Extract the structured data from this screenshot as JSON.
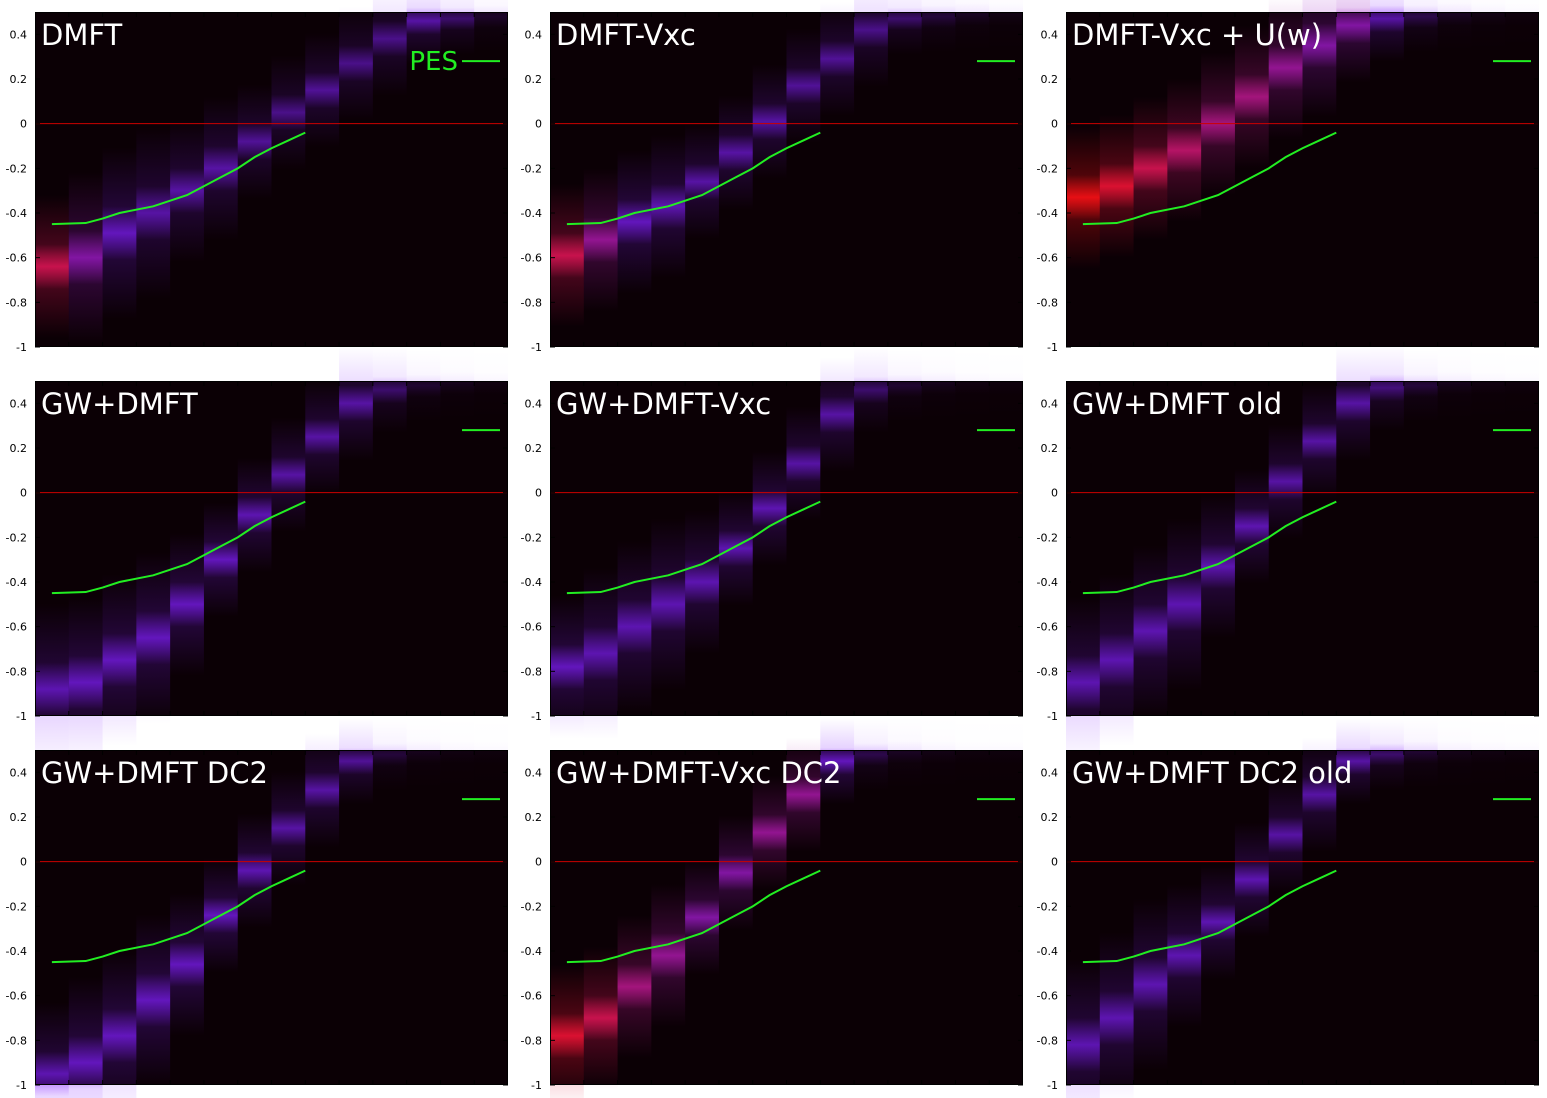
{
  "colors": {
    "background": "#ffffff",
    "plot_background": "#0b0005",
    "fermi_line": "#cc0000",
    "pes_line": "#22ee22",
    "title_text": "#ffffff"
  },
  "chart_data": [
    {
      "type": "heatmap",
      "title": "DMFT",
      "legend": {
        "label": "PES",
        "placement": "top-right"
      },
      "ylim": [
        -1,
        0.5
      ],
      "yticks": [
        -1,
        -0.8,
        -0.6,
        -0.4,
        -0.2,
        0,
        0.2,
        0.4
      ],
      "fermi_level": 0,
      "bands": [
        {
          "k": 0,
          "energy": -0.64,
          "width": 0.1,
          "intensity": 0.9
        },
        {
          "k": 1,
          "energy": -0.6,
          "width": 0.12,
          "intensity": 0.7
        },
        {
          "k": 2,
          "energy": -0.49,
          "width": 0.12,
          "intensity": 0.6
        },
        {
          "k": 3,
          "energy": -0.4,
          "width": 0.12,
          "intensity": 0.5
        },
        {
          "k": 4,
          "energy": -0.3,
          "width": 0.1,
          "intensity": 0.5
        },
        {
          "k": 5,
          "energy": -0.2,
          "width": 0.1,
          "intensity": 0.5
        },
        {
          "k": 6,
          "energy": -0.08,
          "width": 0.08,
          "intensity": 0.45
        },
        {
          "k": 7,
          "energy": 0.05,
          "width": 0.08,
          "intensity": 0.4
        },
        {
          "k": 8,
          "energy": 0.15,
          "width": 0.08,
          "intensity": 0.45
        },
        {
          "k": 9,
          "energy": 0.27,
          "width": 0.08,
          "intensity": 0.4
        },
        {
          "k": 10,
          "energy": 0.38,
          "width": 0.08,
          "intensity": 0.4
        },
        {
          "k": 11,
          "energy": 0.46,
          "width": 0.06,
          "intensity": 0.5
        },
        {
          "k": 12,
          "energy": 0.47,
          "width": 0.05,
          "intensity": 0.3
        },
        {
          "k": 13,
          "energy": 0.48,
          "width": 0.05,
          "intensity": 0.1
        }
      ]
    },
    {
      "type": "heatmap",
      "title": "DMFT-Vxc",
      "legend": {
        "label": "",
        "placement": "top-right"
      },
      "ylim": [
        -1,
        0.5
      ],
      "yticks": [
        -1,
        -0.8,
        -0.6,
        -0.4,
        -0.2,
        0,
        0.2,
        0.4
      ],
      "fermi_level": 0,
      "bands": [
        {
          "k": 0,
          "energy": -0.59,
          "width": 0.1,
          "intensity": 0.9
        },
        {
          "k": 1,
          "energy": -0.52,
          "width": 0.1,
          "intensity": 0.75
        },
        {
          "k": 2,
          "energy": -0.44,
          "width": 0.1,
          "intensity": 0.6
        },
        {
          "k": 3,
          "energy": -0.37,
          "width": 0.1,
          "intensity": 0.55
        },
        {
          "k": 4,
          "energy": -0.26,
          "width": 0.08,
          "intensity": 0.5
        },
        {
          "k": 5,
          "energy": -0.13,
          "width": 0.08,
          "intensity": 0.5
        },
        {
          "k": 6,
          "energy": 0.01,
          "width": 0.08,
          "intensity": 0.5
        },
        {
          "k": 7,
          "energy": 0.17,
          "width": 0.08,
          "intensity": 0.45
        },
        {
          "k": 8,
          "energy": 0.29,
          "width": 0.08,
          "intensity": 0.45
        },
        {
          "k": 9,
          "energy": 0.42,
          "width": 0.08,
          "intensity": 0.4
        },
        {
          "k": 10,
          "energy": 0.47,
          "width": 0.05,
          "intensity": 0.3
        },
        {
          "k": 11,
          "energy": 0.48,
          "width": 0.05,
          "intensity": 0.15
        },
        {
          "k": 12,
          "energy": 0.49,
          "width": 0.05,
          "intensity": 0.08
        },
        {
          "k": 13,
          "energy": 0.49,
          "width": 0.05,
          "intensity": 0.04
        }
      ]
    },
    {
      "type": "heatmap",
      "title": "DMFT-Vxc + U(w)",
      "legend": {
        "label": "",
        "placement": "top-right"
      },
      "ylim": [
        -1,
        0.5
      ],
      "yticks": [
        -1,
        -0.8,
        -0.6,
        -0.4,
        -0.2,
        0,
        0.2,
        0.4
      ],
      "fermi_level": 0,
      "bands": [
        {
          "k": 0,
          "energy": -0.33,
          "width": 0.1,
          "intensity": 1.0
        },
        {
          "k": 1,
          "energy": -0.28,
          "width": 0.1,
          "intensity": 0.95
        },
        {
          "k": 2,
          "energy": -0.2,
          "width": 0.1,
          "intensity": 0.9
        },
        {
          "k": 3,
          "energy": -0.12,
          "width": 0.1,
          "intensity": 0.85
        },
        {
          "k": 4,
          "energy": 0.0,
          "width": 0.1,
          "intensity": 0.8
        },
        {
          "k": 5,
          "energy": 0.12,
          "width": 0.1,
          "intensity": 0.8
        },
        {
          "k": 6,
          "energy": 0.25,
          "width": 0.1,
          "intensity": 0.75
        },
        {
          "k": 7,
          "energy": 0.35,
          "width": 0.1,
          "intensity": 0.7
        },
        {
          "k": 8,
          "energy": 0.44,
          "width": 0.08,
          "intensity": 0.7
        },
        {
          "k": 9,
          "energy": 0.47,
          "width": 0.06,
          "intensity": 0.5
        },
        {
          "k": 10,
          "energy": 0.48,
          "width": 0.05,
          "intensity": 0.2
        },
        {
          "k": 11,
          "energy": 0.49,
          "width": 0.05,
          "intensity": 0.08
        },
        {
          "k": 12,
          "energy": 0.49,
          "width": 0.05,
          "intensity": 0.04
        },
        {
          "k": 13,
          "energy": 0.49,
          "width": 0.05,
          "intensity": 0.02
        }
      ]
    },
    {
      "type": "heatmap",
      "title": "GW+DMFT",
      "legend": {
        "label": "",
        "placement": "top-right"
      },
      "ylim": [
        -1,
        0.5
      ],
      "yticks": [
        -1,
        -0.8,
        -0.6,
        -0.4,
        -0.2,
        0,
        0.2,
        0.4
      ],
      "fermi_level": 0,
      "bands": [
        {
          "k": 0,
          "energy": -0.88,
          "width": 0.12,
          "intensity": 0.55
        },
        {
          "k": 1,
          "energy": -0.85,
          "width": 0.12,
          "intensity": 0.6
        },
        {
          "k": 2,
          "energy": -0.75,
          "width": 0.12,
          "intensity": 0.6
        },
        {
          "k": 3,
          "energy": -0.65,
          "width": 0.12,
          "intensity": 0.6
        },
        {
          "k": 4,
          "energy": -0.5,
          "width": 0.1,
          "intensity": 0.6
        },
        {
          "k": 5,
          "energy": -0.3,
          "width": 0.08,
          "intensity": 0.6
        },
        {
          "k": 6,
          "energy": -0.1,
          "width": 0.08,
          "intensity": 0.55
        },
        {
          "k": 7,
          "energy": 0.08,
          "width": 0.08,
          "intensity": 0.5
        },
        {
          "k": 8,
          "energy": 0.25,
          "width": 0.08,
          "intensity": 0.5
        },
        {
          "k": 9,
          "energy": 0.4,
          "width": 0.08,
          "intensity": 0.5
        },
        {
          "k": 10,
          "energy": 0.46,
          "width": 0.06,
          "intensity": 0.3
        },
        {
          "k": 11,
          "energy": 0.48,
          "width": 0.05,
          "intensity": 0.12
        },
        {
          "k": 12,
          "energy": 0.49,
          "width": 0.05,
          "intensity": 0.06
        },
        {
          "k": 13,
          "energy": 0.49,
          "width": 0.05,
          "intensity": 0.03
        }
      ]
    },
    {
      "type": "heatmap",
      "title": "GW+DMFT-Vxc",
      "legend": {
        "label": "",
        "placement": "top-right"
      },
      "ylim": [
        -1,
        0.5
      ],
      "yticks": [
        -1,
        -0.8,
        -0.6,
        -0.4,
        -0.2,
        0,
        0.2,
        0.4
      ],
      "fermi_level": 0,
      "bands": [
        {
          "k": 0,
          "energy": -0.78,
          "width": 0.1,
          "intensity": 0.6
        },
        {
          "k": 1,
          "energy": -0.72,
          "width": 0.12,
          "intensity": 0.55
        },
        {
          "k": 2,
          "energy": -0.6,
          "width": 0.12,
          "intensity": 0.55
        },
        {
          "k": 3,
          "energy": -0.5,
          "width": 0.12,
          "intensity": 0.55
        },
        {
          "k": 4,
          "energy": -0.4,
          "width": 0.1,
          "intensity": 0.55
        },
        {
          "k": 5,
          "energy": -0.25,
          "width": 0.08,
          "intensity": 0.55
        },
        {
          "k": 6,
          "energy": -0.07,
          "width": 0.08,
          "intensity": 0.55
        },
        {
          "k": 7,
          "energy": 0.13,
          "width": 0.08,
          "intensity": 0.5
        },
        {
          "k": 8,
          "energy": 0.35,
          "width": 0.08,
          "intensity": 0.5
        },
        {
          "k": 9,
          "energy": 0.46,
          "width": 0.06,
          "intensity": 0.3
        },
        {
          "k": 10,
          "energy": 0.48,
          "width": 0.05,
          "intensity": 0.12
        },
        {
          "k": 11,
          "energy": 0.49,
          "width": 0.05,
          "intensity": 0.06
        },
        {
          "k": 12,
          "energy": 0.49,
          "width": 0.05,
          "intensity": 0.03
        },
        {
          "k": 13,
          "energy": 0.49,
          "width": 0.05,
          "intensity": 0.02
        }
      ]
    },
    {
      "type": "heatmap",
      "title": "GW+DMFT old",
      "legend": {
        "label": "",
        "placement": "top-right"
      },
      "ylim": [
        -1,
        0.5
      ],
      "yticks": [
        -1,
        -0.8,
        -0.6,
        -0.4,
        -0.2,
        0,
        0.2,
        0.4
      ],
      "fermi_level": 0,
      "bands": [
        {
          "k": 0,
          "energy": -0.85,
          "width": 0.12,
          "intensity": 0.55
        },
        {
          "k": 1,
          "energy": -0.75,
          "width": 0.12,
          "intensity": 0.55
        },
        {
          "k": 2,
          "energy": -0.62,
          "width": 0.12,
          "intensity": 0.55
        },
        {
          "k": 3,
          "energy": -0.5,
          "width": 0.12,
          "intensity": 0.55
        },
        {
          "k": 4,
          "energy": -0.33,
          "width": 0.1,
          "intensity": 0.55
        },
        {
          "k": 5,
          "energy": -0.15,
          "width": 0.08,
          "intensity": 0.55
        },
        {
          "k": 6,
          "energy": 0.05,
          "width": 0.08,
          "intensity": 0.5
        },
        {
          "k": 7,
          "energy": 0.23,
          "width": 0.08,
          "intensity": 0.5
        },
        {
          "k": 8,
          "energy": 0.4,
          "width": 0.08,
          "intensity": 0.5
        },
        {
          "k": 9,
          "energy": 0.47,
          "width": 0.06,
          "intensity": 0.35
        },
        {
          "k": 10,
          "energy": 0.48,
          "width": 0.05,
          "intensity": 0.15
        },
        {
          "k": 11,
          "energy": 0.49,
          "width": 0.05,
          "intensity": 0.06
        },
        {
          "k": 12,
          "energy": 0.49,
          "width": 0.05,
          "intensity": 0.03
        },
        {
          "k": 13,
          "energy": 0.49,
          "width": 0.05,
          "intensity": 0.02
        }
      ]
    },
    {
      "type": "heatmap",
      "title": "GW+DMFT DC2",
      "legend": {
        "label": "",
        "placement": "top-right"
      },
      "ylim": [
        -1,
        0.5
      ],
      "yticks": [
        -1,
        -0.8,
        -0.6,
        -0.4,
        -0.2,
        0,
        0.2,
        0.4
      ],
      "fermi_level": 0,
      "bands": [
        {
          "k": 0,
          "energy": -0.95,
          "width": 0.1,
          "intensity": 0.55
        },
        {
          "k": 1,
          "energy": -0.9,
          "width": 0.12,
          "intensity": 0.6
        },
        {
          "k": 2,
          "energy": -0.78,
          "width": 0.12,
          "intensity": 0.6
        },
        {
          "k": 3,
          "energy": -0.62,
          "width": 0.12,
          "intensity": 0.6
        },
        {
          "k": 4,
          "energy": -0.46,
          "width": 0.1,
          "intensity": 0.6
        },
        {
          "k": 5,
          "energy": -0.24,
          "width": 0.08,
          "intensity": 0.6
        },
        {
          "k": 6,
          "energy": -0.04,
          "width": 0.08,
          "intensity": 0.55
        },
        {
          "k": 7,
          "energy": 0.15,
          "width": 0.08,
          "intensity": 0.5
        },
        {
          "k": 8,
          "energy": 0.32,
          "width": 0.08,
          "intensity": 0.5
        },
        {
          "k": 9,
          "energy": 0.45,
          "width": 0.06,
          "intensity": 0.45
        },
        {
          "k": 10,
          "energy": 0.48,
          "width": 0.05,
          "intensity": 0.15
        },
        {
          "k": 11,
          "energy": 0.49,
          "width": 0.05,
          "intensity": 0.06
        },
        {
          "k": 12,
          "energy": 0.49,
          "width": 0.05,
          "intensity": 0.03
        },
        {
          "k": 13,
          "energy": 0.49,
          "width": 0.05,
          "intensity": 0.02
        }
      ]
    },
    {
      "type": "heatmap",
      "title": "GW+DMFT-Vxc DC2",
      "legend": {
        "label": "",
        "placement": "top-right"
      },
      "ylim": [
        -1,
        0.5
      ],
      "yticks": [
        -1,
        -0.8,
        -0.6,
        -0.4,
        -0.2,
        0,
        0.2,
        0.4
      ],
      "fermi_level": 0,
      "bands": [
        {
          "k": 0,
          "energy": -0.78,
          "width": 0.1,
          "intensity": 0.95
        },
        {
          "k": 1,
          "energy": -0.7,
          "width": 0.1,
          "intensity": 0.9
        },
        {
          "k": 2,
          "energy": -0.56,
          "width": 0.1,
          "intensity": 0.8
        },
        {
          "k": 3,
          "energy": -0.42,
          "width": 0.1,
          "intensity": 0.75
        },
        {
          "k": 4,
          "energy": -0.25,
          "width": 0.08,
          "intensity": 0.7
        },
        {
          "k": 5,
          "energy": -0.05,
          "width": 0.08,
          "intensity": 0.7
        },
        {
          "k": 6,
          "energy": 0.13,
          "width": 0.08,
          "intensity": 0.75
        },
        {
          "k": 7,
          "energy": 0.3,
          "width": 0.08,
          "intensity": 0.75
        },
        {
          "k": 8,
          "energy": 0.45,
          "width": 0.06,
          "intensity": 0.6
        },
        {
          "k": 9,
          "energy": 0.48,
          "width": 0.05,
          "intensity": 0.2
        },
        {
          "k": 10,
          "energy": 0.49,
          "width": 0.05,
          "intensity": 0.08
        },
        {
          "k": 11,
          "energy": 0.49,
          "width": 0.05,
          "intensity": 0.04
        },
        {
          "k": 12,
          "energy": 0.49,
          "width": 0.05,
          "intensity": 0.02
        },
        {
          "k": 13,
          "energy": 0.49,
          "width": 0.05,
          "intensity": 0.02
        }
      ]
    },
    {
      "type": "heatmap",
      "title": "GW+DMFT DC2 old",
      "legend": {
        "label": "",
        "placement": "top-right"
      },
      "ylim": [
        -1,
        0.5
      ],
      "yticks": [
        -1,
        -0.8,
        -0.6,
        -0.4,
        -0.2,
        0,
        0.2,
        0.4
      ],
      "fermi_level": 0,
      "bands": [
        {
          "k": 0,
          "energy": -0.82,
          "width": 0.12,
          "intensity": 0.55
        },
        {
          "k": 1,
          "energy": -0.7,
          "width": 0.12,
          "intensity": 0.55
        },
        {
          "k": 2,
          "energy": -0.55,
          "width": 0.12,
          "intensity": 0.55
        },
        {
          "k": 3,
          "energy": -0.42,
          "width": 0.1,
          "intensity": 0.55
        },
        {
          "k": 4,
          "energy": -0.27,
          "width": 0.08,
          "intensity": 0.55
        },
        {
          "k": 5,
          "energy": -0.08,
          "width": 0.08,
          "intensity": 0.55
        },
        {
          "k": 6,
          "energy": 0.12,
          "width": 0.08,
          "intensity": 0.5
        },
        {
          "k": 7,
          "energy": 0.3,
          "width": 0.08,
          "intensity": 0.5
        },
        {
          "k": 8,
          "energy": 0.45,
          "width": 0.06,
          "intensity": 0.5
        },
        {
          "k": 9,
          "energy": 0.48,
          "width": 0.05,
          "intensity": 0.3
        },
        {
          "k": 10,
          "energy": 0.49,
          "width": 0.05,
          "intensity": 0.12
        },
        {
          "k": 11,
          "energy": 0.49,
          "width": 0.05,
          "intensity": 0.05
        },
        {
          "k": 12,
          "energy": 0.49,
          "width": 0.05,
          "intensity": 0.03
        },
        {
          "k": 13,
          "energy": 0.49,
          "width": 0.05,
          "intensity": 0.02
        }
      ]
    }
  ],
  "pes_curve": [
    {
      "k": 0,
      "energy": -0.45
    },
    {
      "k": 1,
      "energy": -0.445
    },
    {
      "k": 1.5,
      "energy": -0.425
    },
    {
      "k": 2,
      "energy": -0.4
    },
    {
      "k": 3,
      "energy": -0.37
    },
    {
      "k": 4,
      "energy": -0.32
    },
    {
      "k": 5,
      "energy": -0.24
    },
    {
      "k": 5.5,
      "energy": -0.2
    },
    {
      "k": 6,
      "energy": -0.15
    },
    {
      "k": 6.5,
      "energy": -0.11
    },
    {
      "k": 7,
      "energy": -0.075
    },
    {
      "k": 7.5,
      "energy": -0.04
    }
  ]
}
